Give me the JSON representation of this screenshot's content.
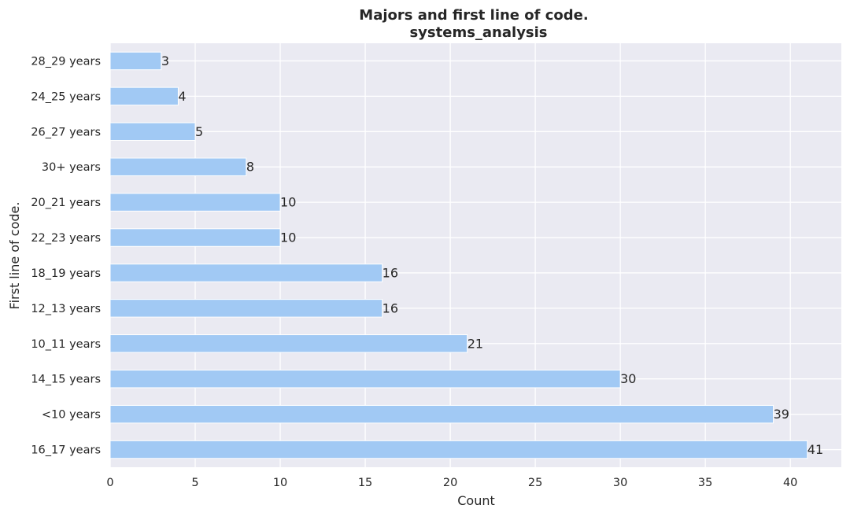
{
  "chart_data": {
    "type": "bar",
    "orientation": "horizontal",
    "title": "Majors and first line of code.",
    "subtitle": "systems_analysis",
    "xlabel": "Count",
    "ylabel": "First line of code.",
    "categories": [
      "28_29 years",
      "24_25 years",
      "26_27 years",
      "30+ years",
      "20_21 years",
      "22_23 years",
      "18_19 years",
      "12_13 years",
      "10_11 years",
      "14_15 years",
      "<10 years",
      "16_17 years"
    ],
    "values": [
      3,
      4,
      5,
      8,
      10,
      10,
      16,
      16,
      21,
      30,
      39,
      41
    ],
    "xlim": [
      0,
      43
    ],
    "xticks": [
      0,
      5,
      10,
      15,
      20,
      25,
      30,
      35,
      40
    ],
    "grid": true,
    "bar_color": "#a1c9f4",
    "background_color": "#eaeaf2"
  }
}
